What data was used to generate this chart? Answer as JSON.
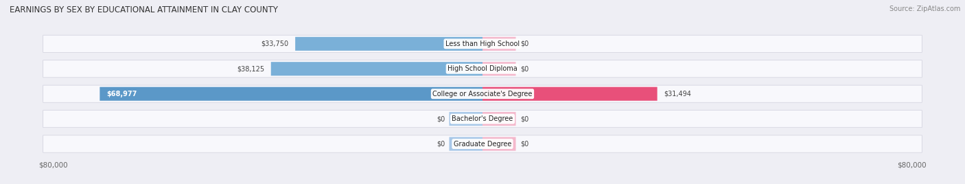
{
  "title": "EARNINGS BY SEX BY EDUCATIONAL ATTAINMENT IN CLAY COUNTY",
  "source": "Source: ZipAtlas.com",
  "categories": [
    "Less than High School",
    "High School Diploma",
    "College or Associate's Degree",
    "Bachelor's Degree",
    "Graduate Degree"
  ],
  "male_values": [
    33750,
    38125,
    68977,
    0,
    0
  ],
  "female_values": [
    0,
    0,
    31494,
    0,
    0
  ],
  "male_color_light": "#a8c8e8",
  "male_color_mid": "#7ab0d8",
  "male_color_strong": "#5b98c8",
  "female_color_light": "#f4b8cc",
  "female_color_mid": "#f090aa",
  "female_color_strong": "#e8507a",
  "max_val": 80000,
  "zero_bar_val": 6000,
  "x_left_label": "$80,000",
  "x_right_label": "$80,000",
  "bg_color": "#eeeef4",
  "row_bg_color": "#f8f8fc",
  "title_fontsize": 8.5,
  "source_fontsize": 7,
  "bar_label_fontsize": 7,
  "cat_label_fontsize": 7,
  "axis_label_fontsize": 7.5
}
